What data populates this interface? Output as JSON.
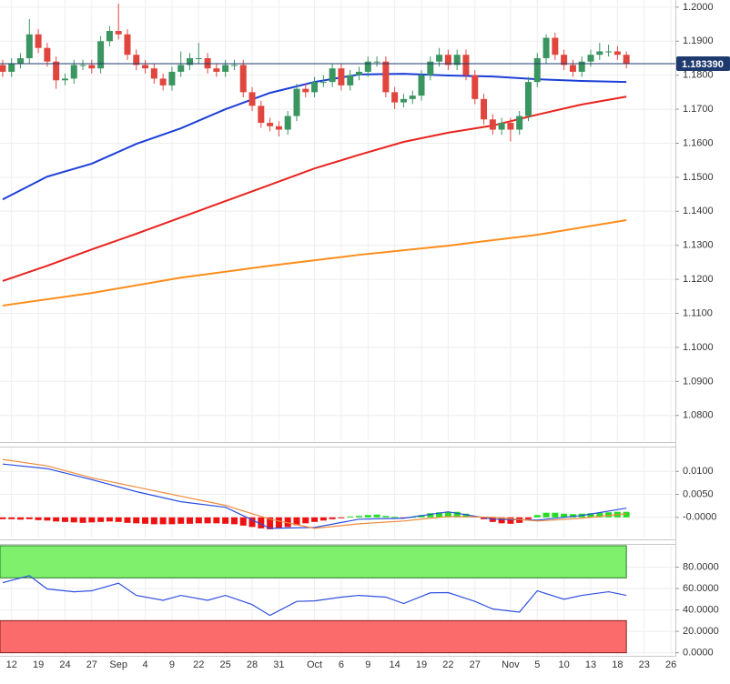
{
  "chart_data": [
    {
      "type": "candlestick",
      "xlim": [
        -0.3,
        75.5
      ],
      "ylim": [
        1.07245,
        1.2021
      ],
      "yticks": [
        {
          "value": 1.2,
          "label": "1.2000"
        },
        {
          "value": 1.19,
          "label": "1.1900"
        },
        {
          "value": 1.18,
          "label": "1.1800"
        },
        {
          "value": 1.17,
          "label": "1.1700"
        },
        {
          "value": 1.16,
          "label": "1.1600"
        },
        {
          "value": 1.15,
          "label": "1.1500"
        },
        {
          "value": 1.14,
          "label": "1.1400"
        },
        {
          "value": 1.13,
          "label": "1.1300"
        },
        {
          "value": 1.12,
          "label": "1.1200"
        },
        {
          "value": 1.11,
          "label": "1.1100"
        },
        {
          "value": 1.1,
          "label": "1.1000"
        },
        {
          "value": 1.09,
          "label": "1.0900"
        },
        {
          "value": 1.08,
          "label": "1.0800"
        }
      ],
      "grid": true,
      "up_color": "#3a9561",
      "down_color": "#e0463e",
      "x": [
        0,
        1,
        2,
        3,
        4,
        5,
        6,
        7,
        8,
        9,
        10,
        11,
        12,
        13,
        14,
        15,
        16,
        17,
        18,
        19,
        20,
        21,
        22,
        23,
        24,
        25,
        26,
        27,
        28,
        29,
        30,
        31,
        32,
        33,
        34,
        35,
        36,
        37,
        38,
        39,
        40,
        41,
        42,
        43,
        44,
        45,
        46,
        47,
        48,
        49,
        50,
        51,
        52,
        53,
        54,
        55,
        56,
        57,
        58,
        59,
        60,
        61,
        62,
        63,
        64,
        65,
        66,
        67,
        68,
        69,
        70
      ],
      "open": [
        1.183,
        1.181,
        1.1835,
        1.185,
        1.192,
        1.188,
        1.184,
        1.1785,
        1.179,
        1.183,
        1.183,
        1.182,
        1.19,
        1.193,
        1.192,
        1.186,
        1.183,
        1.182,
        1.179,
        1.177,
        1.181,
        1.183,
        1.185,
        1.185,
        1.182,
        1.181,
        1.183,
        1.183,
        1.175,
        1.171,
        1.166,
        1.165,
        1.164,
        1.168,
        1.176,
        1.175,
        1.178,
        1.178,
        1.182,
        1.177,
        1.18,
        1.181,
        1.184,
        1.184,
        1.175,
        1.172,
        1.173,
        1.174,
        1.18,
        1.184,
        1.186,
        1.183,
        1.186,
        1.18,
        1.173,
        1.167,
        1.164,
        1.166,
        1.164,
        1.168,
        1.178,
        1.185,
        1.191,
        1.186,
        1.183,
        1.181,
        1.184,
        1.186,
        1.187,
        1.187,
        1.186
      ],
      "high": [
        1.1845,
        1.185,
        1.1865,
        1.1965,
        1.1935,
        1.1895,
        1.1855,
        1.1805,
        1.1845,
        1.1845,
        1.1845,
        1.1915,
        1.1945,
        1.201,
        1.1935,
        1.1875,
        1.1845,
        1.1835,
        1.1805,
        1.1825,
        1.187,
        1.1865,
        1.1895,
        1.1865,
        1.1835,
        1.1845,
        1.1845,
        1.1845,
        1.1765,
        1.1725,
        1.1675,
        1.1665,
        1.1695,
        1.1775,
        1.1775,
        1.1795,
        1.18,
        1.1835,
        1.1835,
        1.1815,
        1.1825,
        1.1855,
        1.1855,
        1.1855,
        1.1765,
        1.1745,
        1.1755,
        1.1815,
        1.1855,
        1.188,
        1.1875,
        1.1875,
        1.1875,
        1.1815,
        1.1745,
        1.1685,
        1.1675,
        1.1675,
        1.1695,
        1.1795,
        1.1865,
        1.192,
        1.1925,
        1.1875,
        1.1845,
        1.1855,
        1.1875,
        1.1895,
        1.189,
        1.1885,
        1.187
      ],
      "low": [
        1.1795,
        1.1795,
        1.182,
        1.1835,
        1.1865,
        1.1825,
        1.176,
        1.177,
        1.1775,
        1.1815,
        1.1805,
        1.1805,
        1.1885,
        1.1905,
        1.1845,
        1.1815,
        1.1805,
        1.1775,
        1.1755,
        1.1755,
        1.1795,
        1.1815,
        1.1835,
        1.1805,
        1.1795,
        1.1795,
        1.1815,
        1.1735,
        1.1695,
        1.1645,
        1.1635,
        1.162,
        1.1625,
        1.1665,
        1.1735,
        1.1735,
        1.1765,
        1.1765,
        1.1755,
        1.1755,
        1.1785,
        1.1795,
        1.1825,
        1.1735,
        1.17,
        1.1705,
        1.1715,
        1.1725,
        1.1785,
        1.1825,
        1.1815,
        1.1815,
        1.1785,
        1.1715,
        1.1655,
        1.1625,
        1.1625,
        1.1605,
        1.1625,
        1.1665,
        1.1765,
        1.1835,
        1.1845,
        1.1815,
        1.1795,
        1.1795,
        1.1825,
        1.1845,
        1.1855,
        1.1845,
        1.182
      ],
      "close": [
        1.181,
        1.1835,
        1.185,
        1.192,
        1.188,
        1.184,
        1.1785,
        1.179,
        1.183,
        1.183,
        1.182,
        1.19,
        1.193,
        1.192,
        1.186,
        1.183,
        1.182,
        1.179,
        1.177,
        1.181,
        1.183,
        1.185,
        1.185,
        1.182,
        1.181,
        1.183,
        1.183,
        1.175,
        1.171,
        1.166,
        1.165,
        1.164,
        1.168,
        1.176,
        1.175,
        1.178,
        1.178,
        1.182,
        1.177,
        1.18,
        1.181,
        1.184,
        1.184,
        1.175,
        1.172,
        1.173,
        1.174,
        1.18,
        1.184,
        1.186,
        1.183,
        1.186,
        1.18,
        1.173,
        1.167,
        1.164,
        1.166,
        1.164,
        1.168,
        1.178,
        1.185,
        1.191,
        1.186,
        1.183,
        1.181,
        1.184,
        1.186,
        1.187,
        1.187,
        1.186,
        1.1834
      ],
      "series": [
        {
          "color": "#1c3fd8",
          "x": [
            0,
            5,
            10,
            15,
            20,
            25,
            30,
            35,
            40,
            45,
            50,
            55,
            60,
            65,
            70
          ],
          "values": [
            1.1435,
            1.1502,
            1.154,
            1.1598,
            1.1644,
            1.17,
            1.1748,
            1.178,
            1.1802,
            1.1804,
            1.1799,
            1.1796,
            1.1788,
            1.1783,
            1.178
          ]
        },
        {
          "color": "#e8231e",
          "x": [
            0,
            5,
            10,
            15,
            20,
            25,
            30,
            35,
            40,
            45,
            50,
            55,
            60,
            65,
            70
          ],
          "values": [
            1.1195,
            1.124,
            1.1288,
            1.1334,
            1.1382,
            1.143,
            1.1478,
            1.1526,
            1.1566,
            1.1604,
            1.1631,
            1.1652,
            1.1684,
            1.1714,
            1.1737
          ]
        },
        {
          "color": "#ff8c1a",
          "x": [
            0,
            10,
            20,
            30,
            40,
            50,
            60,
            70
          ],
          "values": [
            1.1123,
            1.116,
            1.1205,
            1.124,
            1.1272,
            1.1299,
            1.1331,
            1.1374
          ]
        }
      ],
      "last_price": {
        "value": 1.18339,
        "label": "1.183390",
        "color": "#1e3a6e"
      }
    },
    {
      "type": "macd",
      "xlim": [
        -0.3,
        75.5
      ],
      "ylim": [
        -0.0044,
        0.015
      ],
      "yticks": [
        {
          "value": 0.01,
          "label": "0.0100"
        },
        {
          "value": 0.005,
          "label": "0.0050"
        },
        {
          "value": 0,
          "label": "-0.0000"
        }
      ],
      "grid": true,
      "pos_color": "#22dd22",
      "neg_color": "#ee1111",
      "x": [
        0,
        1,
        2,
        3,
        4,
        5,
        6,
        7,
        8,
        9,
        10,
        11,
        12,
        13,
        14,
        15,
        16,
        17,
        18,
        19,
        20,
        21,
        22,
        23,
        24,
        25,
        26,
        27,
        28,
        29,
        30,
        31,
        32,
        33,
        34,
        35,
        36,
        37,
        38,
        39,
        40,
        41,
        42,
        43,
        44,
        45,
        46,
        47,
        48,
        49,
        50,
        51,
        52,
        53,
        54,
        55,
        56,
        57,
        58,
        59,
        60,
        61,
        62,
        63,
        64,
        65,
        66,
        67,
        68,
        69,
        70
      ],
      "values": [
        -0.0004,
        -0.0004,
        -0.0005,
        -0.0004,
        -0.0006,
        -0.0007,
        -0.0009,
        -0.001,
        -0.0011,
        -0.0012,
        -0.0011,
        -0.001,
        -0.0009,
        -0.001,
        -0.0012,
        -0.0013,
        -0.0014,
        -0.0015,
        -0.0015,
        -0.0015,
        -0.0014,
        -0.0014,
        -0.0013,
        -0.0013,
        -0.0013,
        -0.0014,
        -0.0015,
        -0.0018,
        -0.0021,
        -0.0024,
        -0.0026,
        -0.0024,
        -0.0021,
        -0.0017,
        -0.0013,
        -0.001,
        -0.0007,
        -0.0004,
        -0.0001,
        0.0002,
        0.0003,
        0.0005,
        0.0006,
        0.0003,
        0.0001,
        -0.0001,
        0.0001,
        0.0005,
        0.0009,
        0.0011,
        0.0011,
        0.0012,
        0.0008,
        0.0002,
        -0.0004,
        -0.001,
        -0.0013,
        -0.0014,
        -0.0012,
        -0.0004,
        0.0005,
        0.001,
        0.001,
        0.0008,
        0.0007,
        0.0008,
        0.0009,
        0.001,
        0.0011,
        0.0012,
        0.0012
      ],
      "series": [
        {
          "color": "#2a4de0",
          "x": [
            0,
            5,
            10,
            15,
            20,
            25,
            30,
            35,
            40,
            45,
            50,
            55,
            60,
            65,
            70
          ],
          "values": [
            0.0116,
            0.0106,
            0.0082,
            0.0056,
            0.0034,
            0.0022,
            -0.0024,
            -0.0022,
            -0.0004,
            -0.0002,
            0.0012,
            -0.0004,
            -0.0006,
            0.0004,
            0.002
          ]
        },
        {
          "color": "#f08a3c",
          "x": [
            0,
            5,
            10,
            15,
            20,
            25,
            30,
            35,
            40,
            45,
            50,
            55,
            60,
            65,
            70
          ],
          "values": [
            0.0126,
            0.0112,
            0.0086,
            0.0066,
            0.0046,
            0.0026,
            -0.0004,
            -0.0024,
            -0.0014,
            -0.0008,
            0.0002,
            0.0,
            -0.0008,
            -0.0002,
            0.0008
          ]
        }
      ]
    },
    {
      "type": "rsi",
      "xlim": [
        -0.3,
        75.5
      ],
      "ylim": [
        -2,
        100
      ],
      "yticks": [
        {
          "value": 80,
          "label": "80.0000"
        },
        {
          "value": 60,
          "label": "60.0000"
        },
        {
          "value": 40,
          "label": "40.0000"
        },
        {
          "value": 20,
          "label": "20.0000"
        },
        {
          "value": 0,
          "label": "0.0000"
        }
      ],
      "grid": true,
      "xticks": [
        {
          "value": 1,
          "label": "12"
        },
        {
          "value": 4,
          "label": "19"
        },
        {
          "value": 7,
          "label": "24"
        },
        {
          "value": 10,
          "label": "27"
        },
        {
          "value": 13,
          "label": "Sep"
        },
        {
          "value": 16,
          "label": "4"
        },
        {
          "value": 19,
          "label": "9"
        },
        22,
        25,
        28,
        31,
        {
          "value": 35,
          "label": "Oct"
        },
        {
          "value": 38,
          "label": "6"
        },
        {
          "value": 41,
          "label": "9"
        },
        {
          "value": 44,
          "label": "14"
        },
        {
          "value": 47,
          "label": "19"
        },
        {
          "value": 50,
          "label": "22"
        },
        {
          "value": 53,
          "label": "27"
        },
        {
          "value": 57,
          "label": "Nov"
        },
        {
          "value": 60,
          "label": "5"
        },
        {
          "value": 63,
          "label": "10"
        },
        {
          "value": 66,
          "label": "13"
        },
        {
          "value": 69,
          "label": "18"
        },
        {
          "value": 72,
          "label": "23"
        },
        {
          "value": 75,
          "label": "26"
        }
      ],
      "bands": [
        {
          "from": 70,
          "to": 100,
          "color": "#7ef06c",
          "stroke": "#2a7a2a"
        },
        {
          "from": 0,
          "to": 30,
          "color": "#fb6b6b",
          "stroke": "#8a2020"
        }
      ],
      "series": [
        {
          "color": "#3050e0",
          "x": [
            0,
            3,
            5,
            8,
            10,
            13,
            15,
            18,
            20,
            23,
            25,
            28,
            30,
            33,
            35,
            38,
            40,
            43,
            45,
            48,
            50,
            53,
            55,
            58,
            60,
            63,
            65,
            68,
            70
          ],
          "values": [
            65.5,
            72,
            59.6,
            57,
            57.9,
            65,
            53.6,
            49,
            53.6,
            49,
            53.6,
            45,
            34.9,
            48,
            48.5,
            52,
            53.6,
            52,
            46,
            56,
            56.2,
            48,
            40.9,
            38,
            57.9,
            50,
            53.6,
            57,
            53.6
          ]
        }
      ]
    }
  ]
}
